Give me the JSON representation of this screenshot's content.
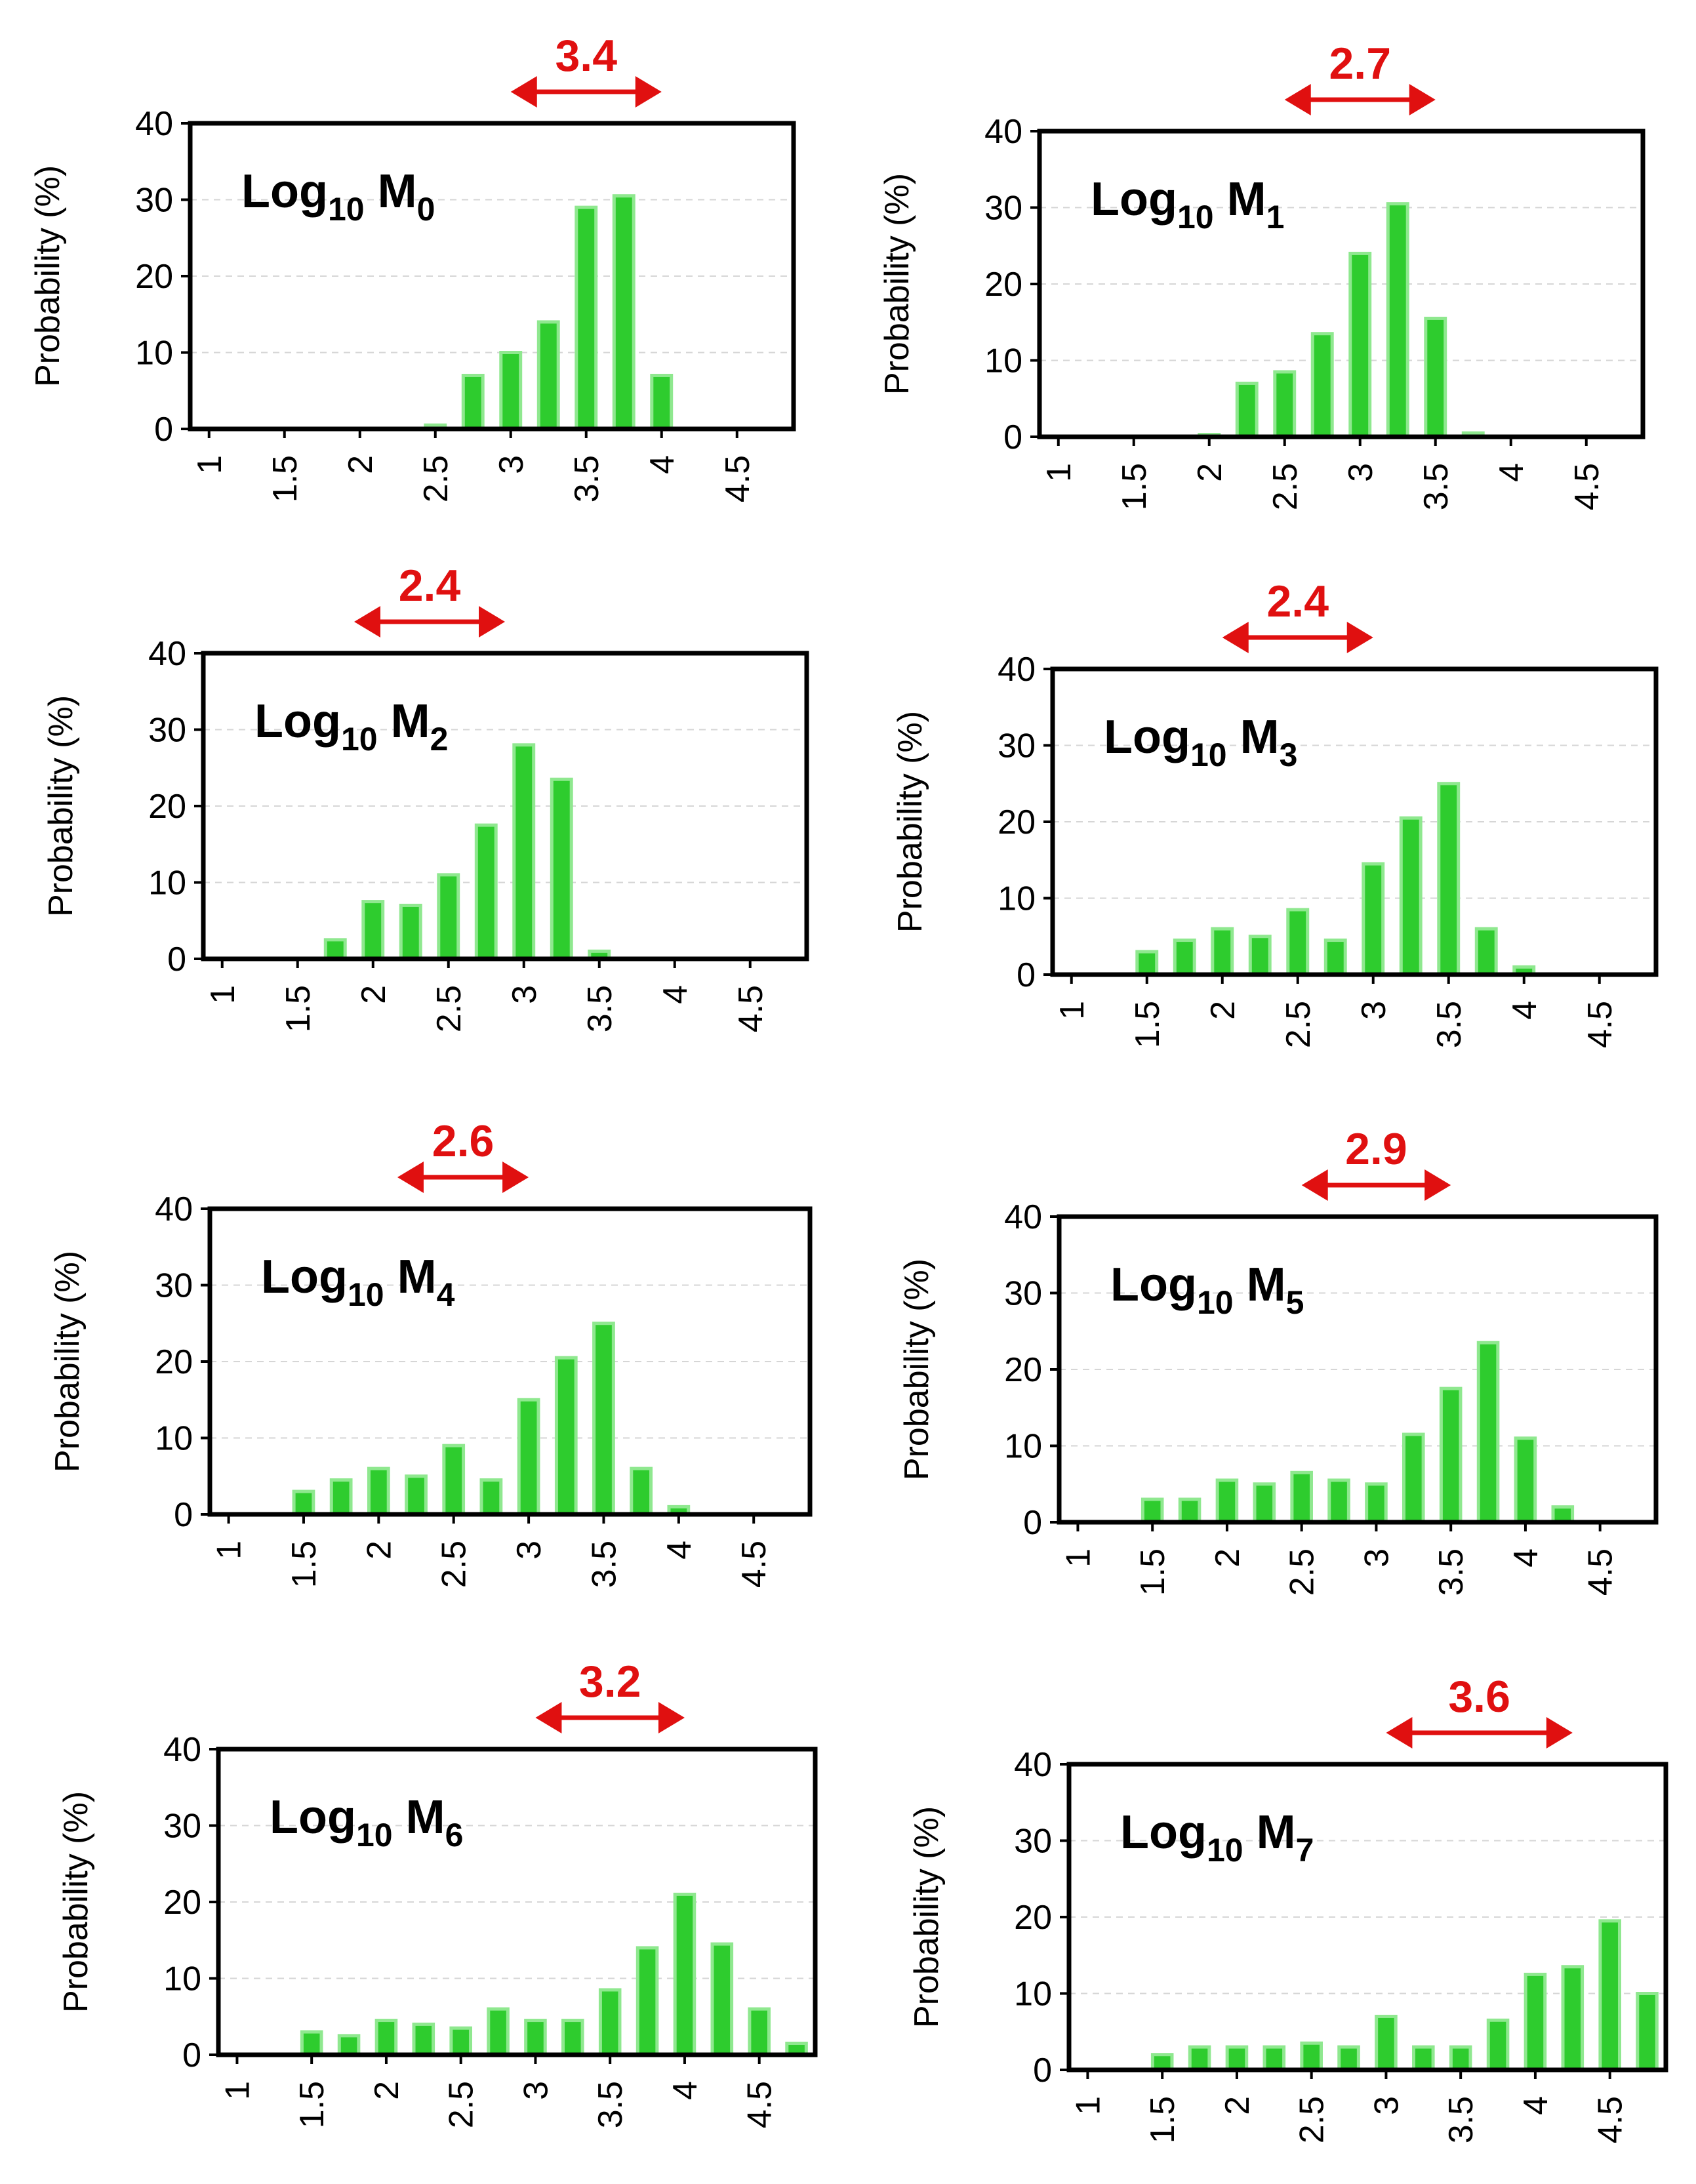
{
  "chart_data": [
    {
      "type": "bar",
      "title": "Log10 M0",
      "title_base": "Log",
      "title_sub1": "10",
      "title_main": " M",
      "title_sub2": "0",
      "ylabel": "Probability (%)",
      "ylim": [
        0,
        40
      ],
      "yticks": [
        "0",
        "10",
        "20",
        "30",
        "40"
      ],
      "xticks": [
        "1",
        "1.5",
        "2",
        "2.5",
        "3",
        "3.5",
        "4",
        "4.5"
      ],
      "xlim": [
        0.875,
        4.875
      ],
      "x": [
        2.5,
        2.75,
        3.0,
        3.25,
        3.5,
        3.75,
        4.0
      ],
      "values": [
        0.5,
        7,
        10,
        14,
        29,
        30.5,
        7
      ],
      "range_label": "3.4",
      "range_x": [
        3.0,
        4.0
      ],
      "bar_color": "#2ecc2e",
      "bar_edge_color": "#8fe88f",
      "annotation_color": "#e01010"
    },
    {
      "type": "bar",
      "title": "Log10 M1",
      "title_base": "Log",
      "title_sub1": "10",
      "title_main": " M",
      "title_sub2": "1",
      "ylabel": "Probability (%)",
      "ylim": [
        0,
        40
      ],
      "yticks": [
        "0",
        "10",
        "20",
        "30",
        "40"
      ],
      "xticks": [
        "1",
        "1.5",
        "2",
        "2.5",
        "3",
        "3.5",
        "4",
        "4.5"
      ],
      "xlim": [
        0.875,
        4.875
      ],
      "x": [
        2.0,
        2.25,
        2.5,
        2.75,
        3.0,
        3.25,
        3.5,
        3.75
      ],
      "values": [
        0.3,
        7,
        8.5,
        13.5,
        24,
        30.5,
        15.5,
        0.5
      ],
      "range_label": "2.7",
      "range_x": [
        2.5,
        3.5
      ],
      "bar_color": "#2ecc2e",
      "bar_edge_color": "#8fe88f",
      "annotation_color": "#e01010"
    },
    {
      "type": "bar",
      "title": "Log10 M2",
      "title_base": "Log",
      "title_sub1": "10",
      "title_main": " M",
      "title_sub2": "2",
      "ylabel": "Probability (%)",
      "ylim": [
        0,
        40
      ],
      "yticks": [
        "0",
        "10",
        "20",
        "30",
        "40"
      ],
      "xticks": [
        "1",
        "1.5",
        "2",
        "2.5",
        "3",
        "3.5",
        "4",
        "4.5"
      ],
      "xlim": [
        0.875,
        4.875
      ],
      "x": [
        1.75,
        2.0,
        2.25,
        2.5,
        2.75,
        3.0,
        3.25,
        3.5
      ],
      "values": [
        2.5,
        7.5,
        7,
        11,
        17.5,
        28,
        23.5,
        1
      ],
      "range_label": "2.4",
      "range_x": [
        1.875,
        2.875
      ],
      "bar_color": "#2ecc2e",
      "bar_edge_color": "#8fe88f",
      "annotation_color": "#e01010"
    },
    {
      "type": "bar",
      "title": "Log10 M3",
      "title_base": "Log",
      "title_sub1": "10",
      "title_main": " M",
      "title_sub2": "3",
      "ylabel": "Probability (%)",
      "ylim": [
        0,
        40
      ],
      "yticks": [
        "0",
        "10",
        "20",
        "30",
        "40"
      ],
      "xticks": [
        "1",
        "1.5",
        "2",
        "2.5",
        "3",
        "3.5",
        "4",
        "4.5"
      ],
      "xlim": [
        0.875,
        4.875
      ],
      "x": [
        1.5,
        1.75,
        2.0,
        2.25,
        2.5,
        2.75,
        3.0,
        3.25,
        3.5,
        3.75,
        4.0
      ],
      "values": [
        3,
        4.5,
        6,
        5,
        8.5,
        4.5,
        14.5,
        20.5,
        25,
        6,
        1
      ],
      "range_label": "2.4",
      "range_x": [
        2.0,
        3.0
      ],
      "bar_color": "#2ecc2e",
      "bar_edge_color": "#8fe88f",
      "annotation_color": "#e01010"
    },
    {
      "type": "bar",
      "title": "Log10 M4",
      "title_base": "Log",
      "title_sub1": "10",
      "title_main": " M",
      "title_sub2": "4",
      "ylabel": "Probability (%)",
      "ylim": [
        0,
        40
      ],
      "yticks": [
        "0",
        "10",
        "20",
        "30",
        "40"
      ],
      "xticks": [
        "1",
        "1.5",
        "2",
        "2.5",
        "3",
        "3.5",
        "4",
        "4.5"
      ],
      "xlim": [
        0.875,
        4.875
      ],
      "x": [
        1.5,
        1.75,
        2.0,
        2.25,
        2.5,
        2.75,
        3.0,
        3.25,
        3.5,
        3.75,
        4.0
      ],
      "values": [
        3,
        4.5,
        6,
        5,
        9,
        4.5,
        15,
        20.5,
        25,
        6,
        1
      ],
      "range_label": "2.6",
      "range_x": [
        2.125,
        3.0
      ],
      "bar_color": "#2ecc2e",
      "bar_edge_color": "#8fe88f",
      "annotation_color": "#e01010"
    },
    {
      "type": "bar",
      "title": "Log10 M5",
      "title_base": "Log",
      "title_sub1": "10",
      "title_main": " M",
      "title_sub2": "5",
      "ylabel": "Probability (%)",
      "ylim": [
        0,
        40
      ],
      "yticks": [
        "0",
        "10",
        "20",
        "30",
        "40"
      ],
      "xticks": [
        "1",
        "1.5",
        "2",
        "2.5",
        "3",
        "3.5",
        "4",
        "4.5"
      ],
      "xlim": [
        0.875,
        4.875
      ],
      "x": [
        1.5,
        1.75,
        2.0,
        2.25,
        2.5,
        2.75,
        3.0,
        3.25,
        3.5,
        3.75,
        4.0,
        4.25
      ],
      "values": [
        3,
        3,
        5.5,
        5,
        6.5,
        5.5,
        5,
        11.5,
        17.5,
        23.5,
        11,
        2
      ],
      "range_label": "2.9",
      "range_x": [
        2.5,
        3.5
      ],
      "bar_color": "#2ecc2e",
      "bar_edge_color": "#8fe88f",
      "annotation_color": "#e01010"
    },
    {
      "type": "bar",
      "title": "Log10 M6",
      "title_base": "Log",
      "title_sub1": "10",
      "title_main": " M",
      "title_sub2": "6",
      "ylabel": "Probability (%)",
      "ylim": [
        0,
        40
      ],
      "yticks": [
        "0",
        "10",
        "20",
        "30",
        "40"
      ],
      "xticks": [
        "1",
        "1.5",
        "2",
        "2.5",
        "3",
        "3.5",
        "4",
        "4.5"
      ],
      "xlim": [
        0.875,
        4.875
      ],
      "x": [
        1.5,
        1.75,
        2.0,
        2.25,
        2.5,
        2.75,
        3.0,
        3.25,
        3.5,
        3.75,
        4.0,
        4.25,
        4.5,
        4.75
      ],
      "values": [
        3,
        2.5,
        4.5,
        4,
        3.5,
        6,
        4.5,
        4.5,
        8.5,
        14,
        21,
        14.5,
        6,
        1.5
      ],
      "range_label": "3.2",
      "range_x": [
        3.0,
        4.0
      ],
      "bar_color": "#2ecc2e",
      "bar_edge_color": "#8fe88f",
      "annotation_color": "#e01010"
    },
    {
      "type": "bar",
      "title": "Log10 M7",
      "title_base": "Log",
      "title_sub1": "10",
      "title_main": " M",
      "title_sub2": "7",
      "ylabel": "Probability (%)",
      "ylim": [
        0,
        40
      ],
      "yticks": [
        "0",
        "10",
        "20",
        "30",
        "40"
      ],
      "xticks": [
        "1",
        "1.5",
        "2",
        "2.5",
        "3",
        "3.5",
        "4",
        "4.5"
      ],
      "xlim": [
        0.875,
        4.875
      ],
      "x": [
        1.5,
        1.75,
        2.0,
        2.25,
        2.5,
        2.75,
        3.0,
        3.25,
        3.5,
        3.75,
        4.0,
        4.25,
        4.5,
        4.75
      ],
      "values": [
        2,
        3,
        3,
        3,
        3.5,
        3,
        7,
        3,
        3,
        6.5,
        12.5,
        13.5,
        19.5,
        10
      ],
      "range_label": "3.6",
      "range_x": [
        3.0,
        4.25
      ],
      "bar_color": "#2ecc2e",
      "bar_edge_color": "#8fe88f",
      "annotation_color": "#e01010"
    }
  ]
}
